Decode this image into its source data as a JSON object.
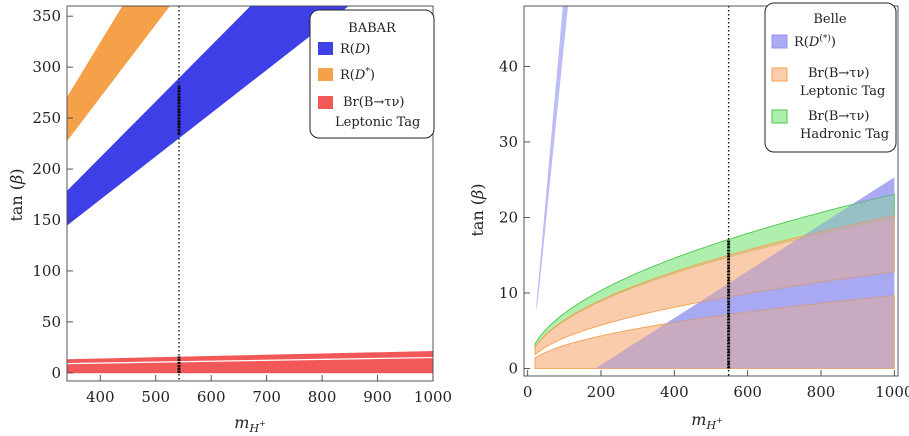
{
  "chart_data": [
    {
      "type": "area",
      "panel": "left",
      "xlabel": "m_{H+}",
      "ylabel": "tan (β)",
      "xlim": [
        340,
        1000
      ],
      "ylim": [
        -8,
        360
      ],
      "xticks": [
        400,
        500,
        600,
        700,
        800,
        900,
        1000
      ],
      "yticks": [
        0,
        50,
        100,
        150,
        200,
        250,
        300,
        350
      ],
      "marker_x": 542,
      "marker_segments": [
        [
          234,
          282
        ],
        [
          0,
          16
        ]
      ],
      "legend": {
        "title": "BABAR",
        "placement": "top-right"
      },
      "series": [
        {
          "name": "R(D)",
          "color": "#3f3fe8",
          "lower": [
            [
              340,
              145
            ],
            [
              1000,
              425
            ]
          ],
          "upper": [
            [
              340,
              178
            ],
            [
              1000,
              540
            ]
          ]
        },
        {
          "name": "R(D*)",
          "color": "#f5a14a",
          "lower": [
            [
              340,
              228
            ],
            [
              1000,
              700
            ]
          ],
          "upper": [
            [
              340,
              270
            ],
            [
              1000,
              860
            ]
          ]
        },
        {
          "name": "Br(B→τν) Leptonic Tag",
          "color": "#f25858",
          "lower": [
            [
              340,
              0
            ],
            [
              1000,
              0
            ]
          ],
          "upper": [
            [
              340,
              8
            ],
            [
              1000,
              14
            ]
          ]
        },
        {
          "name": "",
          "color": "#f25858",
          "lower": [
            [
              340,
              10
            ],
            [
              1000,
              16
            ]
          ],
          "upper": [
            [
              340,
              13
            ],
            [
              1000,
              21
            ]
          ]
        }
      ]
    },
    {
      "type": "area",
      "panel": "right",
      "xlabel": "m_{H+}",
      "ylabel": "tan (β)",
      "xlim": [
        -10,
        1010
      ],
      "ylim": [
        -1,
        48
      ],
      "xticks": [
        0,
        200,
        400,
        600,
        800,
        1000
      ],
      "yticks": [
        0,
        10,
        20,
        30,
        40
      ],
      "marker_x": 548,
      "marker_segments": [
        [
          0,
          17
        ]
      ],
      "legend": {
        "title": "Belle",
        "placement": "top-right"
      },
      "series": [
        {
          "name": "R(D(*))",
          "color": "#8f8ff0",
          "kind": "cone"
        },
        {
          "name": "Br(B→τν) Leptonic Tag",
          "color": "#f8b98a",
          "kind": "sqrt-band",
          "a_low": 0.405,
          "a_high": 0.64
        },
        {
          "name": "Br(B→τν) Hadronic Tag",
          "color": "#8fe98f",
          "kind": "sqrt-band",
          "a_low": 0.63,
          "a_high": 0.73
        }
      ]
    }
  ]
}
